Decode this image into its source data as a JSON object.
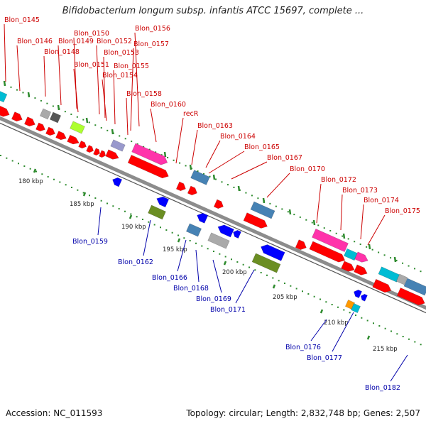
{
  "header": {
    "title": "Bifidobacterium longum subsp. infantis ATCC 15697, complete ..."
  },
  "footer": {
    "accession": "Accession: NC_011593",
    "topology": "Topology: circular; Length: 2,832,748 bp; Genes: 2,507"
  },
  "colors": {
    "forward_label": "#cc0000",
    "reverse_label": "#0000aa",
    "backbone": "#8c8c8c",
    "tick": "#2e8b2e",
    "cds_red": "#ff0000",
    "magenta": "#ff33aa",
    "steel_blue": "#4682b4",
    "blue": "#0000ff",
    "olive": "#6b8e23",
    "cyan": "#00bcd4",
    "gray": "#aaaaaa",
    "lime": "#adff2f",
    "orange": "#ff9900",
    "lavender": "#9999cc"
  },
  "scale_ticks": [
    "180 kbp",
    "185 kbp",
    "190 kbp",
    "195 kbp",
    "200 kbp",
    "205 kbp",
    "210 kbp",
    "215 kbp"
  ],
  "forward_labels": [
    "Blon_0145",
    "Blon_0146",
    "Blon_0148",
    "Blon_0149",
    "Blon_0150",
    "Blon_0151",
    "Blon_0152",
    "Blon_0153",
    "Blon_0154",
    "Blon_0155",
    "Blon_0156",
    "Blon_0157",
    "Blon_0158",
    "Blon_0160",
    "recR",
    "Blon_0163",
    "Blon_0164",
    "Blon_0165",
    "Blon_0167",
    "Blon_0170",
    "Blon_0172",
    "Blon_0173",
    "Blon_0174",
    "Blon_0175"
  ],
  "reverse_labels": [
    "Blon_0159",
    "Blon_0162",
    "Blon_0166",
    "Blon_0168",
    "Blon_0169",
    "Blon_0171",
    "Blon_0176",
    "Blon_0177",
    "Blon_0182"
  ]
}
